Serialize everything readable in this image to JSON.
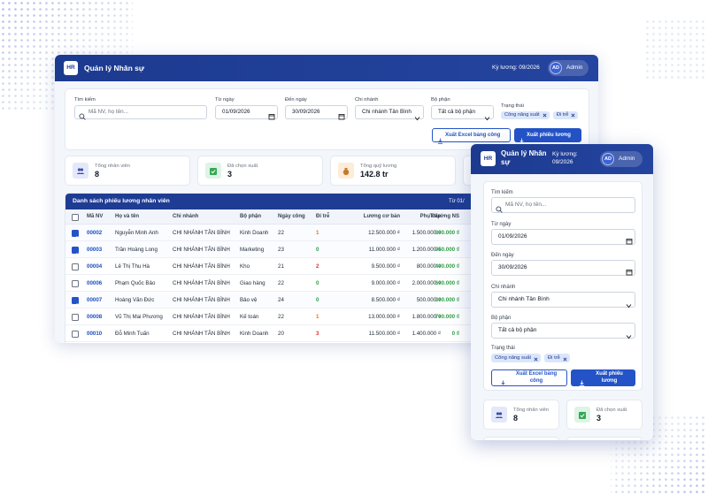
{
  "header": {
    "badge": "HR",
    "title": "Quản lý Nhân sự",
    "period": "Kỳ lương: 09/2026",
    "avatar": "AD",
    "user": "Admin"
  },
  "filters": {
    "search": {
      "label": "Tìm kiếm",
      "placeholder": "Mã NV, họ tên..."
    },
    "from": {
      "label": "Từ ngày",
      "value": "01/09/2026"
    },
    "to": {
      "label": "Đến ngày",
      "value": "30/09/2026"
    },
    "branch": {
      "label": "Chi nhánh",
      "value": "Chi nhánh Tân Bình"
    },
    "department": {
      "label": "Bộ phận",
      "value": "Tất cả bộ phận"
    },
    "status": {
      "label": "Trạng thái",
      "tags": [
        "Công năng suất",
        "Đi trễ"
      ]
    }
  },
  "buttons": {
    "excel": "Xuất Excel bảng công",
    "payslip": "Xuất phiếu lương"
  },
  "stats": [
    {
      "label": "Tổng nhân viên",
      "value": 8
    },
    {
      "label": "Đã chọn xuất",
      "value": 3
    },
    {
      "label": "Tổng quỹ lương",
      "value": "142.8 tr"
    }
  ],
  "table": {
    "title": "Danh sách phiếu lương nhân viên",
    "range": "Từ 01/",
    "columns": [
      "Mã NV",
      "Họ và tên",
      "Chi nhánh",
      "Bộ phận",
      "Ngày công",
      "Đi trễ",
      "Lương cơ bản",
      "Phụ cấp",
      "Thưởng NS"
    ],
    "rows": [
      {
        "selected": true,
        "cells": [
          "00002",
          "Nguyễn Minh Anh",
          "CHI NHÁNH TÂN BÌNH",
          "Kinh Doanh",
          22,
          1,
          "12.500.000 ₫",
          "1.500.000 ₫",
          "800.000 ₫"
        ]
      },
      {
        "selected": true,
        "cells": [
          "00003",
          "Trần Hoàng Long",
          "CHI NHÁNH TÂN BÌNH",
          "Marketing",
          23,
          0,
          "11.000.000 ₫",
          "1.200.000 ₫",
          "950.000 ₫"
        ]
      },
      {
        "selected": false,
        "cells": [
          "00004",
          "Lê Thị Thu Hà",
          "CHI NHÁNH TÂN BÌNH",
          "Kho",
          21,
          2,
          "9.500.000 ₫",
          "800.000 ₫",
          "400.000 ₫"
        ]
      },
      {
        "selected": false,
        "cells": [
          "00006",
          "Phạm Quốc Bảo",
          "CHI NHÁNH TÂN BÌNH",
          "Giao hàng",
          22,
          0,
          "9.000.000 ₫",
          "2.000.000 ₫",
          "600.000 ₫"
        ]
      },
      {
        "selected": true,
        "cells": [
          "00007",
          "Hoàng Văn Đức",
          "CHI NHÁNH TÂN BÌNH",
          "Bảo vệ",
          24,
          0,
          "8.500.000 ₫",
          "500.000 ₫",
          "300.000 ₫"
        ]
      },
      {
        "selected": false,
        "cells": [
          "00008",
          "Vũ Thị Mai Phương",
          "CHI NHÁNH TÂN BÌNH",
          "Kế toán",
          22,
          1,
          "13.000.000 ₫",
          "1.800.000 ₫",
          "700.000 ₫"
        ]
      },
      {
        "selected": false,
        "cells": [
          "00010",
          "Đỗ Minh Tuấn",
          "CHI NHÁNH TÂN BÌNH",
          "Kinh Doanh",
          20,
          3,
          "11.500.000 ₫",
          "1.400.000 ₫",
          "0 ₫"
        ]
      }
    ]
  }
}
